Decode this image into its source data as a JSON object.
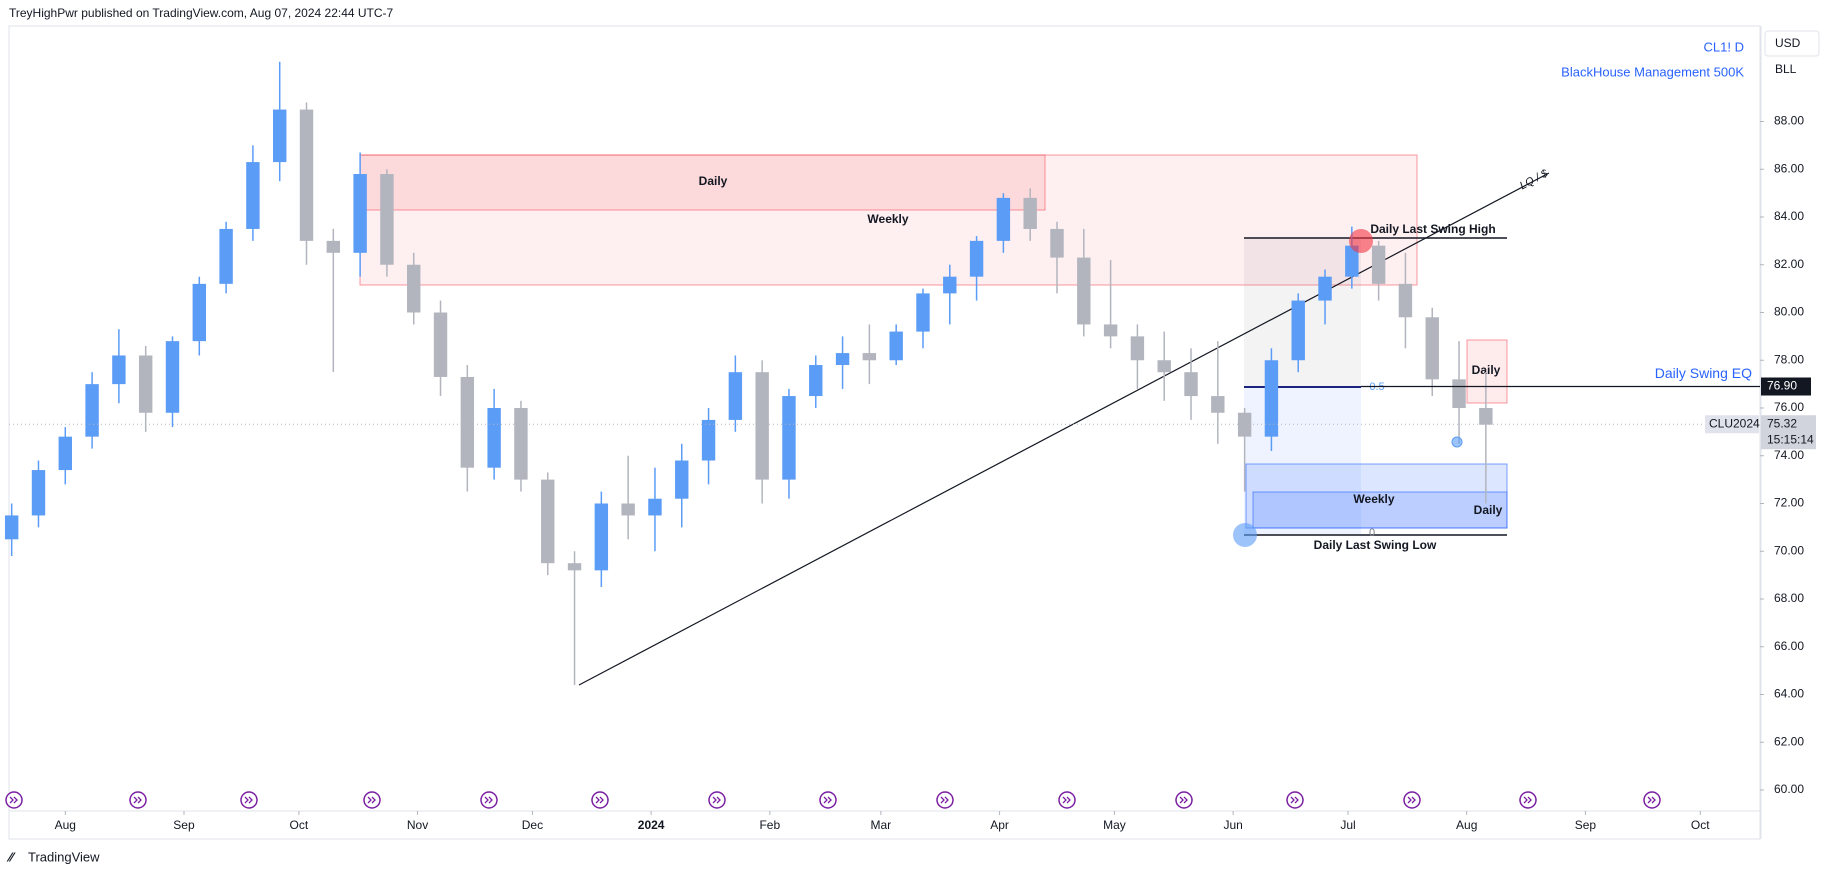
{
  "header": "TreyHighPwr published on TradingView.com, Aug 07, 2024 22:44 UTC-7",
  "footer": "TradingView",
  "toolbar": {
    "currency": "USD",
    "unit": "BLL"
  },
  "chart_data": {
    "type": "candlestick",
    "symbol": "CL1! D",
    "subtitle": "BlackHouse Management 500K",
    "x": [
      -14,
      -7,
      0,
      7,
      14,
      21,
      28,
      35,
      42,
      49,
      56,
      63,
      70,
      77,
      84,
      91,
      98,
      105,
      112,
      119,
      126,
      133,
      140,
      147,
      154,
      161,
      168,
      175,
      182,
      189,
      196,
      203,
      210,
      217,
      224,
      231,
      238,
      245,
      252,
      259,
      266,
      273,
      280,
      287,
      294,
      301,
      308,
      315,
      322,
      329,
      336,
      343,
      350,
      357,
      364,
      371
    ],
    "open": [
      70.5,
      71.5,
      73.4,
      74.8,
      77.0,
      78.2,
      75.8,
      78.8,
      81.2,
      83.5,
      86.3,
      88.5,
      83.0,
      82.5,
      85.8,
      82.0,
      80.0,
      77.3,
      73.5,
      76.0,
      73.0,
      69.5,
      69.2,
      72.0,
      71.5,
      72.2,
      73.8,
      75.5,
      77.5,
      73.0,
      76.5,
      77.8,
      78.3,
      78.0,
      79.2,
      80.8,
      81.5,
      83.0,
      84.8,
      83.5,
      82.3,
      79.5,
      79.0,
      78.0,
      77.5,
      76.5,
      75.8,
      74.8,
      78.0,
      80.5,
      81.5,
      82.8,
      81.2,
      79.8,
      77.2,
      76.0
    ],
    "high": [
      72.0,
      73.8,
      75.2,
      77.5,
      79.3,
      78.6,
      79.0,
      81.5,
      83.8,
      87.0,
      90.5,
      88.8,
      83.5,
      86.7,
      86.0,
      82.5,
      80.5,
      77.8,
      76.8,
      76.3,
      73.3,
      70.0,
      72.5,
      74.0,
      73.5,
      74.5,
      76.0,
      78.2,
      78.0,
      76.8,
      78.2,
      79.0,
      79.5,
      79.5,
      81.0,
      82.0,
      83.2,
      85.0,
      85.2,
      83.8,
      83.5,
      82.2,
      79.5,
      79.2,
      78.5,
      78.8,
      76.0,
      78.5,
      80.8,
      81.8,
      83.6,
      83.0,
      82.5,
      80.2,
      78.8,
      77.5
    ],
    "low": [
      69.8,
      71.0,
      72.8,
      74.3,
      76.2,
      75.0,
      75.2,
      78.2,
      80.8,
      83.0,
      85.5,
      82.0,
      77.5,
      81.5,
      81.5,
      79.5,
      76.5,
      72.5,
      73.0,
      72.5,
      69.0,
      64.4,
      68.5,
      70.5,
      70.0,
      71.0,
      72.8,
      75.0,
      72.0,
      72.2,
      76.0,
      76.8,
      77.0,
      77.8,
      78.5,
      79.5,
      80.5,
      82.5,
      83.0,
      80.8,
      79.0,
      78.5,
      76.8,
      76.3,
      75.5,
      74.5,
      72.5,
      74.2,
      77.5,
      79.5,
      81.0,
      80.5,
      78.5,
      76.5,
      74.5,
      72.0
    ],
    "close": [
      71.5,
      73.4,
      74.8,
      77.0,
      78.2,
      75.8,
      78.8,
      81.2,
      83.5,
      86.3,
      88.5,
      83.0,
      82.5,
      85.8,
      82.0,
      80.0,
      77.3,
      73.5,
      76.0,
      73.0,
      69.5,
      69.2,
      72.0,
      71.5,
      72.2,
      73.8,
      75.5,
      77.5,
      73.0,
      76.5,
      77.8,
      78.3,
      78.0,
      79.2,
      80.8,
      81.5,
      83.0,
      84.8,
      83.5,
      82.3,
      79.5,
      79.0,
      78.0,
      77.5,
      76.5,
      75.8,
      74.8,
      78.0,
      80.5,
      81.5,
      82.8,
      81.2,
      79.8,
      77.2,
      76.0,
      75.3
    ],
    "up_color": "#5b9cf6",
    "down_color": "#b2b5be",
    "xlim": [
      -14.7,
      442.6
    ],
    "xticks": [
      {
        "value": 0,
        "label": "Aug"
      },
      {
        "value": 31,
        "label": "Sep"
      },
      {
        "value": 61,
        "label": "Oct"
      },
      {
        "value": 92,
        "label": "Nov"
      },
      {
        "value": 122,
        "label": "Dec"
      },
      {
        "value": 153,
        "label": "2024"
      },
      {
        "value": 184,
        "label": "Feb"
      },
      {
        "value": 213,
        "label": "Mar"
      },
      {
        "value": 244,
        "label": "Apr"
      },
      {
        "value": 274,
        "label": "May"
      },
      {
        "value": 305,
        "label": "Jun"
      },
      {
        "value": 335,
        "label": "Jul"
      },
      {
        "value": 366,
        "label": "Aug"
      },
      {
        "value": 397,
        "label": "Sep"
      },
      {
        "value": 427,
        "label": "Oct"
      }
    ],
    "ylim": [
      59.12,
      92.0
    ],
    "yticks": [
      {
        "value": 60,
        "label": "60.00"
      },
      {
        "value": 62,
        "label": "62.00"
      },
      {
        "value": 64,
        "label": "64.00"
      },
      {
        "value": 66,
        "label": "66.00"
      },
      {
        "value": 68,
        "label": "68.00"
      },
      {
        "value": 70,
        "label": "70.00"
      },
      {
        "value": 72,
        "label": "72.00"
      },
      {
        "value": 74,
        "label": "74.00"
      },
      {
        "value": 76,
        "label": "76.00"
      },
      {
        "value": 78,
        "label": "78.00"
      },
      {
        "value": 80,
        "label": "80.00"
      },
      {
        "value": 82,
        "label": "82.00"
      },
      {
        "value": 84,
        "label": "84.00"
      },
      {
        "value": 86,
        "label": "86.00"
      },
      {
        "value": 88,
        "label": "88.00"
      }
    ],
    "last_price": {
      "value": 75.32,
      "label": "75.32",
      "contract": "CLU2024",
      "countdown": "15:15:14"
    },
    "eq_level": {
      "value": 76.9,
      "label": "76.90",
      "name": "Daily Swing EQ"
    },
    "annotations": {
      "zone_daily_top": "Daily",
      "zone_weekly_top": "Weekly",
      "swing_high": "Daily Last Swing High",
      "swing_low": "Daily Last Swing Low",
      "fib_mid": "0.5",
      "fib_zero": "0",
      "zone_weekly_bottom": "Weekly",
      "zone_daily_bottom": "Daily",
      "zone_daily_small": "Daily",
      "trendline": "LQ / $"
    }
  }
}
